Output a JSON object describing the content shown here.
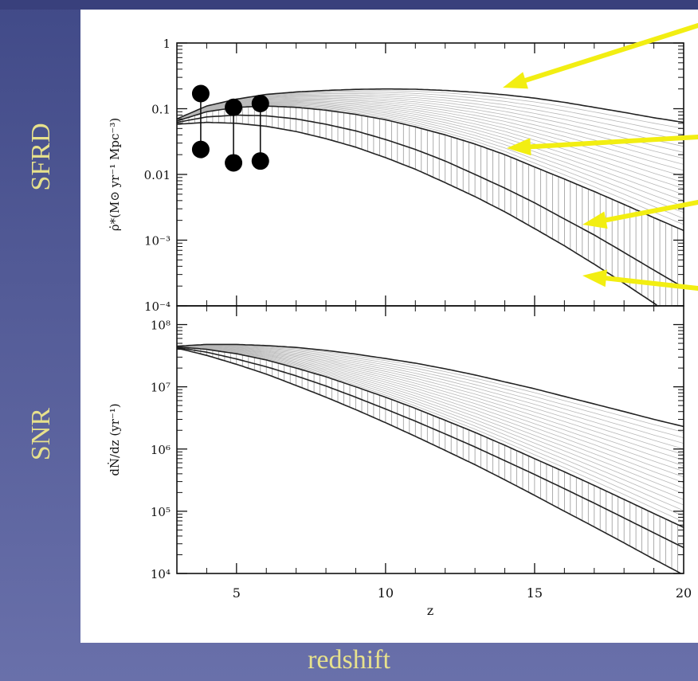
{
  "slide": {
    "left_labels": {
      "top": "SFRD",
      "bottom": "SNR"
    },
    "bottom_label": "redshift",
    "label_color": "#e7e18c",
    "arrow_color": "#f2ee12"
  },
  "chart_data": [
    {
      "type": "line",
      "panel": "top",
      "ylabel": "ρ̇*(M⊙ yr⁻¹ Mpc⁻³)",
      "yscale": "log",
      "ylim": [
        0.0001,
        1
      ],
      "xlim": [
        3,
        20
      ],
      "y_tick_labels": [
        "1",
        "0.1",
        "0.01",
        "10⁻³",
        "10⁻⁴"
      ],
      "y_tick_values": [
        1,
        0.1,
        0.01,
        0.001,
        0.0001
      ],
      "series": [
        {
          "x": [
            3,
            4,
            5,
            6,
            7,
            8,
            9,
            10,
            11,
            12,
            13,
            14,
            15,
            16,
            17,
            18,
            19,
            20
          ],
          "values": [
            0.07,
            0.11,
            0.14,
            0.165,
            0.18,
            0.19,
            0.197,
            0.2,
            0.198,
            0.19,
            0.178,
            0.163,
            0.145,
            0.125,
            0.105,
            0.088,
            0.073,
            0.062
          ]
        },
        {
          "x": [
            3,
            4,
            5,
            6,
            7,
            8,
            9,
            10,
            11,
            12,
            13,
            14,
            15,
            16,
            17,
            18,
            19,
            20
          ],
          "values": [
            0.065,
            0.09,
            0.105,
            0.11,
            0.105,
            0.095,
            0.082,
            0.068,
            0.053,
            0.04,
            0.029,
            0.02,
            0.013,
            0.0085,
            0.0055,
            0.0035,
            0.0022,
            0.0014
          ]
        },
        {
          "x": [
            3,
            4,
            5,
            6,
            7,
            8,
            9,
            10,
            11,
            12,
            13,
            14,
            15,
            16,
            17,
            18,
            19,
            20
          ],
          "values": [
            0.062,
            0.075,
            0.08,
            0.078,
            0.07,
            0.058,
            0.046,
            0.034,
            0.024,
            0.016,
            0.01,
            0.0062,
            0.0037,
            0.0021,
            0.0012,
            0.00065,
            0.00035,
            0.00019
          ]
        },
        {
          "x": [
            3,
            4,
            5,
            6,
            7,
            8,
            9,
            10,
            11,
            12,
            13,
            14,
            15,
            16,
            17,
            18,
            19,
            20
          ],
          "values": [
            0.058,
            0.062,
            0.06,
            0.054,
            0.045,
            0.035,
            0.026,
            0.018,
            0.012,
            0.0075,
            0.0046,
            0.0027,
            0.0015,
            0.00082,
            0.00043,
            0.00022,
            0.00011,
            5.5e-05
          ]
        }
      ],
      "data_points": [
        {
          "x": 3.8,
          "low": 0.024,
          "high": 0.17
        },
        {
          "x": 4.9,
          "low": 0.015,
          "high": 0.105
        },
        {
          "x": 5.8,
          "low": 0.016,
          "high": 0.12
        }
      ]
    },
    {
      "type": "line",
      "panel": "bottom",
      "ylabel": "dṄ/dz (yr⁻¹)",
      "xlabel": "z",
      "yscale": "log",
      "ylim": [
        10000,
        200000000
      ],
      "xlim": [
        3,
        20
      ],
      "x_tick_labels": [
        "5",
        "10",
        "15",
        "20"
      ],
      "x_tick_values": [
        5,
        10,
        15,
        20
      ],
      "y_tick_labels": [
        "10⁸",
        "10⁷",
        "10⁶",
        "10⁵",
        "10⁴"
      ],
      "y_tick_values": [
        100000000,
        10000000,
        1000000,
        100000,
        10000
      ],
      "series": [
        {
          "x": [
            3,
            4,
            5,
            6,
            7,
            8,
            9,
            10,
            11,
            12,
            13,
            14,
            15,
            16,
            17,
            18,
            19,
            20
          ],
          "values": [
            45000000,
            48000000,
            48000000,
            46000000,
            43000000,
            38500000,
            33500000,
            28500000,
            24000000,
            19500000,
            15500000,
            12000000,
            9300000,
            7000000,
            5300000,
            4000000,
            3000000,
            2300000
          ]
        },
        {
          "x": [
            3,
            4,
            5,
            6,
            7,
            8,
            9,
            10,
            11,
            12,
            13,
            14,
            15,
            16,
            17,
            18,
            19,
            20
          ],
          "values": [
            44000000,
            40000000,
            34000000,
            27000000,
            20000000,
            14500000,
            10000000,
            6800000,
            4500000,
            2900000,
            1850000,
            1150000,
            700000,
            430000,
            260000,
            155000,
            92000,
            55000
          ]
        },
        {
          "x": [
            3,
            4,
            5,
            6,
            7,
            8,
            9,
            10,
            11,
            12,
            13,
            14,
            15,
            16,
            17,
            18,
            19,
            20
          ],
          "values": [
            43000000,
            36000000,
            28000000,
            21000000,
            15000000,
            10300000,
            6800000,
            4400000,
            2800000,
            1750000,
            1080000,
            650000,
            390000,
            230000,
            135000,
            78000,
            45000,
            26000
          ]
        },
        {
          "x": [
            3,
            4,
            5,
            6,
            7,
            8,
            9,
            10,
            11,
            12,
            13,
            14,
            15,
            16,
            17,
            18,
            19,
            20
          ],
          "values": [
            42000000,
            32000000,
            23000000,
            16000000,
            10500000,
            6800000,
            4300000,
            2650000,
            1600000,
            950000,
            560000,
            320000,
            180000,
            100000,
            56000,
            31000,
            17000,
            9500
          ]
        }
      ]
    }
  ]
}
